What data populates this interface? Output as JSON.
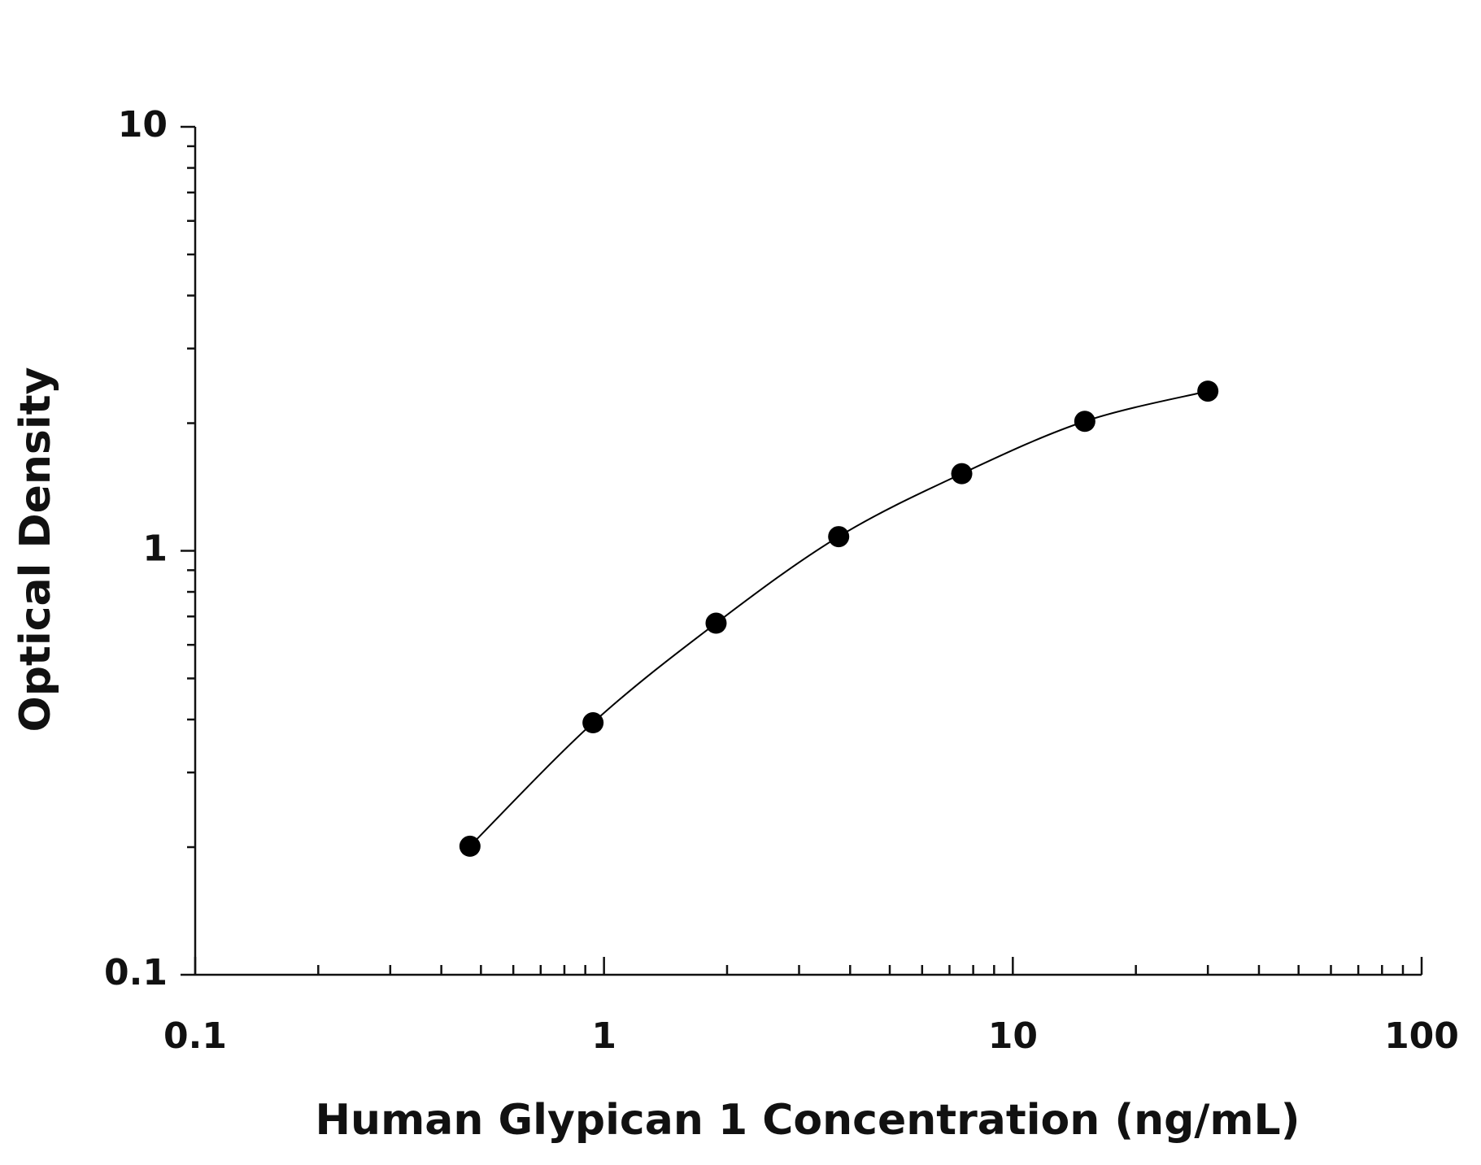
{
  "chart_data": {
    "type": "line",
    "x_label": "Human Glypican 1 Concentration (ng/mL)",
    "y_label": "Optical Density",
    "x": [
      0.47,
      0.94,
      1.88,
      3.75,
      7.5,
      15,
      30
    ],
    "series": [
      {
        "color": "#000000",
        "values": [
          0.201,
          0.393,
          0.675,
          1.08,
          1.52,
          2.02,
          2.38
        ]
      }
    ],
    "xlim": [
      0.1,
      100
    ],
    "ylim": [
      0.1,
      10
    ],
    "xticks": [
      0.1,
      1,
      10,
      100
    ],
    "yticks": [
      0.1,
      1,
      10
    ],
    "x_log": true,
    "y_log": true,
    "markers": true,
    "smooth": true
  }
}
